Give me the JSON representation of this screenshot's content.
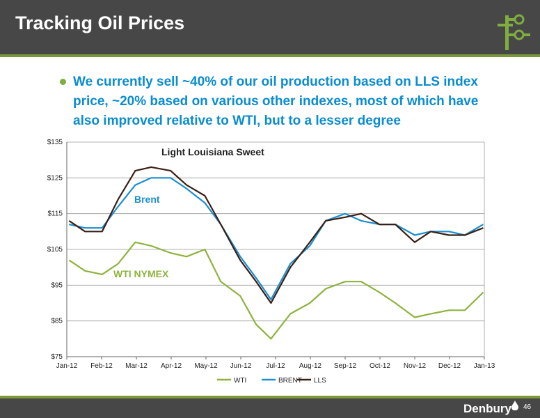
{
  "slide": {
    "title": "Tracking Oil Prices",
    "bullet": "We currently sell ~40% of our oil production based on LLS index price, ~20% based on various other indexes, most of which have also improved relative to WTI, but to a lesser degree",
    "brand": "Denbury",
    "page_number": "46"
  },
  "colors": {
    "header_bg": "#474747",
    "accent_green": "#7a9a3a",
    "bullet_blue": "#0a8ccf",
    "wti": "#8db33d",
    "brent": "#1b8fd0",
    "lls": "#3a1f14"
  },
  "icons": {
    "logo": "pump-jack-icon",
    "bullet": "bullet-dot-icon",
    "brand": "denbury-drop-icon"
  },
  "chart_data": {
    "type": "line",
    "x_ticks": [
      "Jan-12",
      "Feb-12",
      "Mar-12",
      "Apr-12",
      "May-12",
      "Jun-12",
      "Jul-12",
      "Aug-12",
      "Sep-12",
      "Oct-12",
      "Nov-12",
      "Dec-12",
      "Jan-13"
    ],
    "y_ticks": [
      "$75",
      "$85",
      "$95",
      "$105",
      "$115",
      "$125",
      "$135"
    ],
    "ylim": [
      75,
      135
    ],
    "grid": true,
    "legend_position": "bottom",
    "annotations": [
      {
        "text": "Light Louisiana Sweet",
        "series": "LLS"
      },
      {
        "text": "Brent",
        "series": "BRENT"
      },
      {
        "text": "WTI NYMEX",
        "series": "WTI"
      }
    ],
    "x": [
      "2012-01-03",
      "2012-01-17",
      "2012-02-01",
      "2012-02-15",
      "2012-03-01",
      "2012-03-15",
      "2012-04-01",
      "2012-04-15",
      "2012-05-01",
      "2012-05-15",
      "2012-06-01",
      "2012-06-15",
      "2012-06-28",
      "2012-07-15",
      "2012-08-01",
      "2012-08-15",
      "2012-09-01",
      "2012-09-15",
      "2012-10-01",
      "2012-10-15",
      "2012-11-01",
      "2012-11-15",
      "2012-12-01",
      "2012-12-15",
      "2012-12-31"
    ],
    "series": [
      {
        "name": "WTI",
        "values": [
          102,
          99,
          98,
          101,
          107,
          106,
          104,
          103,
          105,
          96,
          92,
          84,
          80,
          87,
          90,
          94,
          96,
          96,
          93,
          90,
          86,
          87,
          88,
          88,
          93
        ]
      },
      {
        "name": "BRENT",
        "values": [
          112,
          111,
          111,
          117,
          123,
          125,
          125,
          122,
          118,
          112,
          103,
          97,
          91,
          101,
          106,
          113,
          115,
          113,
          112,
          112,
          109,
          110,
          110,
          109,
          112
        ]
      },
      {
        "name": "LLS",
        "values": [
          113,
          110,
          110,
          119,
          127,
          128,
          127,
          123,
          120,
          112,
          102,
          96,
          90,
          100,
          107,
          113,
          114,
          115,
          112,
          112,
          107,
          110,
          109,
          109,
          111
        ]
      }
    ]
  }
}
